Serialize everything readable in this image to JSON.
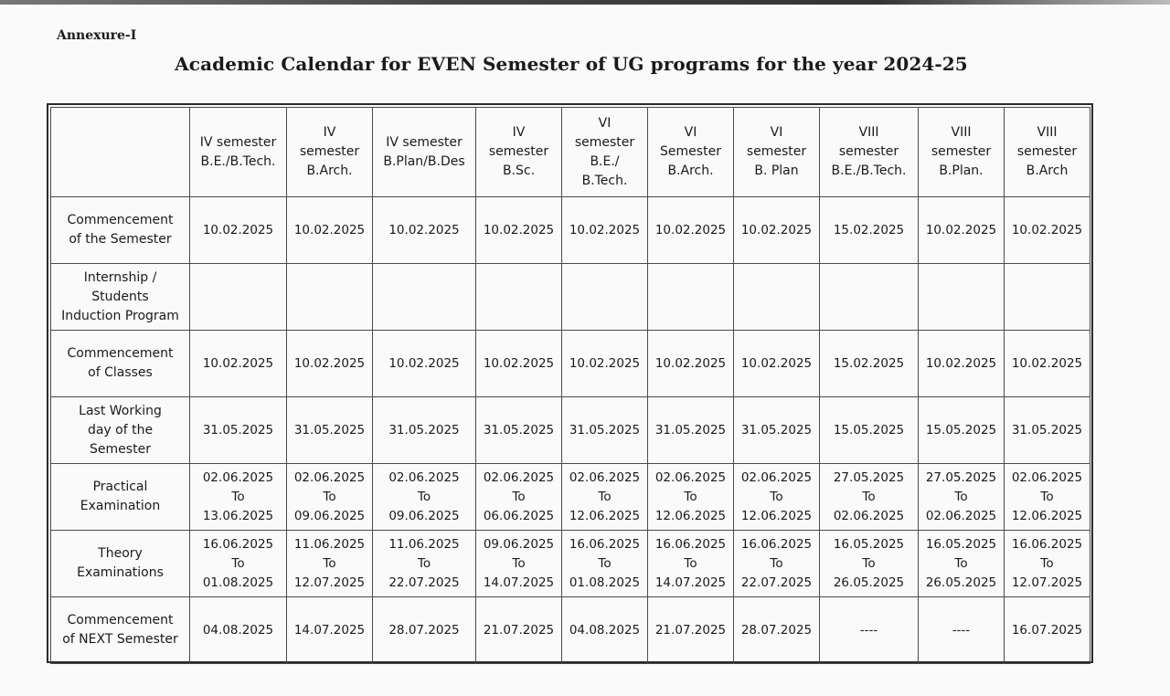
{
  "document": {
    "annexure": "Annexure-I",
    "title": "Academic Calendar for EVEN Semester of UG programs for the year 2024-25"
  },
  "table": {
    "columns": [
      "IV semester\nB.E./B.Tech.",
      "IV\nsemester\nB.Arch.",
      "IV semester\nB.Plan/B.Des",
      "IV\nsemester\nB.Sc.",
      "VI\nsemester\nB.E./\nB.Tech.",
      "VI\nSemester\nB.Arch.",
      "VI\nsemester\nB. Plan",
      "VIII\nsemester\nB.E./B.Tech.",
      "VIII\nsemester\nB.Plan.",
      "VIII\nsemester\nB.Arch"
    ],
    "rows": [
      {
        "label": "Commencement\nof the Semester",
        "cells": [
          "10.02.2025",
          "10.02.2025",
          "10.02.2025",
          "10.02.2025",
          "10.02.2025",
          "10.02.2025",
          "10.02.2025",
          "15.02.2025",
          "10.02.2025",
          "10.02.2025"
        ]
      },
      {
        "label": "Internship /\nStudents\nInduction Program",
        "cells": [
          "",
          "",
          "",
          "",
          "",
          "",
          "",
          "",
          "",
          ""
        ]
      },
      {
        "label": "Commencement\nof Classes",
        "cells": [
          "10.02.2025",
          "10.02.2025",
          "10.02.2025",
          "10.02.2025",
          "10.02.2025",
          "10.02.2025",
          "10.02.2025",
          "15.02.2025",
          "10.02.2025",
          "10.02.2025"
        ]
      },
      {
        "label": "Last Working\nday of the\nSemester",
        "cells": [
          "31.05.2025",
          "31.05.2025",
          "31.05.2025",
          "31.05.2025",
          "31.05.2025",
          "31.05.2025",
          "31.05.2025",
          "15.05.2025",
          "15.05.2025",
          "31.05.2025"
        ]
      },
      {
        "label": "Practical\nExamination",
        "cells": [
          "02.06.2025\nTo\n13.06.2025",
          "02.06.2025\nTo\n09.06.2025",
          "02.06.2025\nTo\n09.06.2025",
          "02.06.2025\nTo\n06.06.2025",
          "02.06.2025\nTo\n12.06.2025",
          "02.06.2025\nTo\n12.06.2025",
          "02.06.2025\nTo\n12.06.2025",
          "27.05.2025\nTo\n02.06.2025",
          "27.05.2025\nTo\n02.06.2025",
          "02.06.2025\nTo\n12.06.2025"
        ]
      },
      {
        "label": "Theory\nExaminations",
        "cells": [
          "16.06.2025\nTo\n01.08.2025",
          "11.06.2025\nTo\n12.07.2025",
          "11.06.2025\nTo\n22.07.2025",
          "09.06.2025\nTo\n14.07.2025",
          "16.06.2025\nTo\n01.08.2025",
          "16.06.2025\nTo\n14.07.2025",
          "16.06.2025\nTo\n22.07.2025",
          "16.05.2025\nTo\n26.05.2025",
          "16.05.2025\nTo\n26.05.2025",
          "16.06.2025\nTo\n12.07.2025"
        ]
      },
      {
        "label": "Commencement\nof NEXT Semester",
        "cells": [
          "04.08.2025",
          "14.07.2025",
          "28.07.2025",
          "21.07.2025",
          "04.08.2025",
          "21.07.2025",
          "28.07.2025",
          "----",
          "----",
          "16.07.2025"
        ]
      }
    ]
  }
}
